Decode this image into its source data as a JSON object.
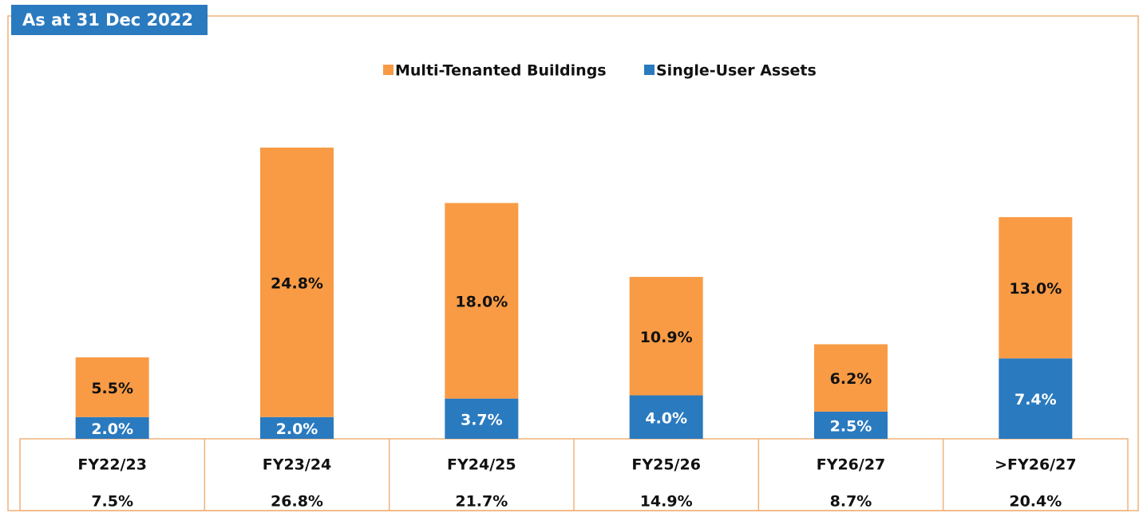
{
  "chart_data": {
    "type": "bar",
    "stacked": true,
    "title": "As at 31 Dec 2022",
    "categories": [
      "FY22/23",
      "FY23/24",
      "FY24/25",
      "FY25/26",
      "FY26/27",
      ">FY26/27"
    ],
    "series": [
      {
        "name": "Multi-Tenanted Buildings",
        "color": "#f99b45",
        "values": [
          5.5,
          24.8,
          18.0,
          10.9,
          6.2,
          13.0
        ],
        "value_labels": [
          "5.5%",
          "24.8%",
          "18.0%",
          "10.9%",
          "6.2%",
          "13.0%"
        ]
      },
      {
        "name": "Single-User Assets",
        "color": "#2a7abf",
        "values": [
          2.0,
          2.0,
          3.7,
          4.0,
          2.5,
          7.4
        ],
        "value_labels": [
          "2.0%",
          "2.0%",
          "3.7%",
          "4.0%",
          "2.5%",
          "7.4%"
        ]
      }
    ],
    "totals": [
      7.5,
      26.8,
      21.7,
      14.9,
      8.7,
      20.4
    ],
    "total_labels": [
      "7.5%",
      "26.8%",
      "21.7%",
      "14.9%",
      "8.7%",
      "20.4%"
    ]
  }
}
